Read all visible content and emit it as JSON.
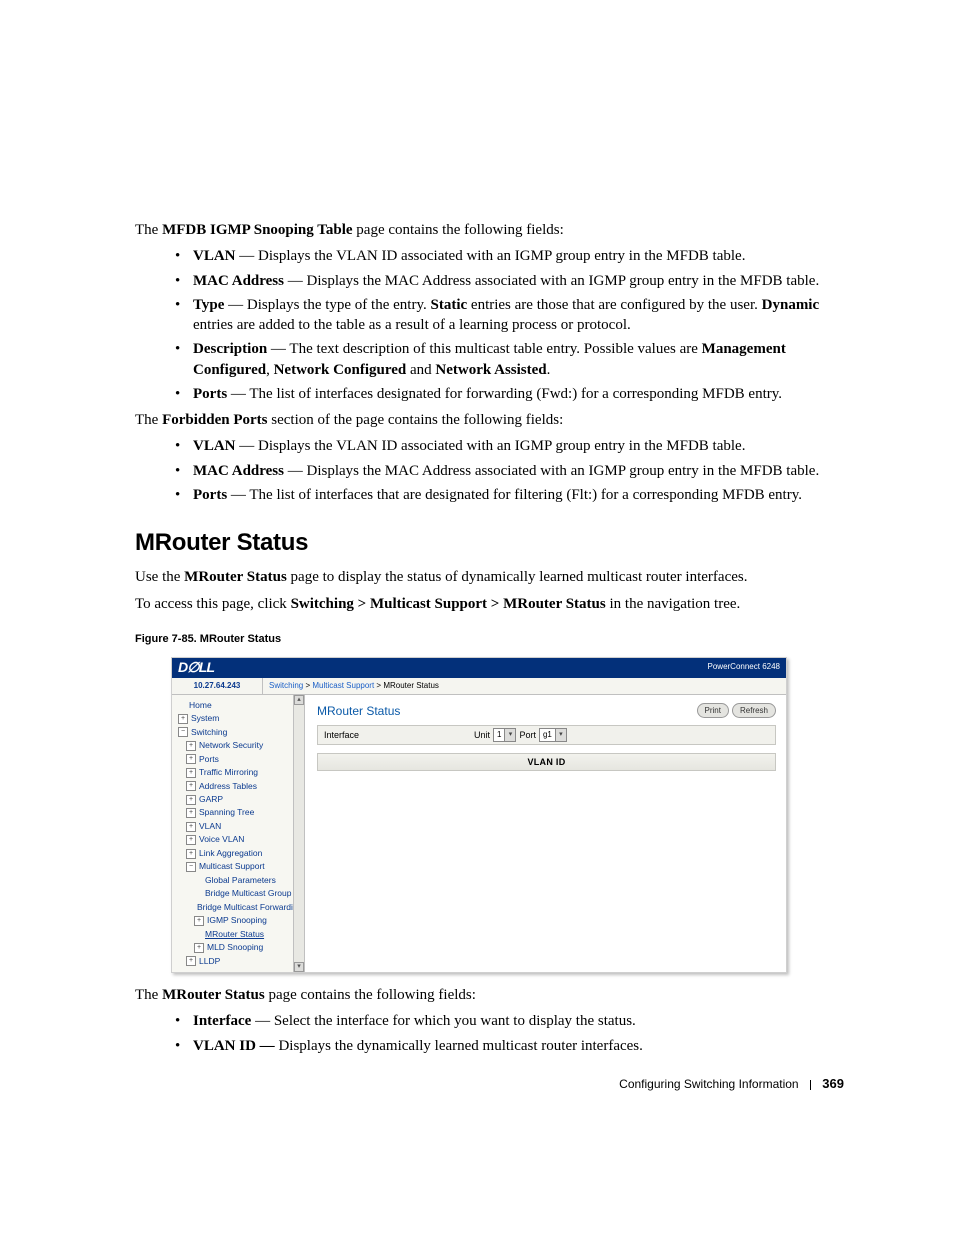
{
  "intro": {
    "line1_a": "The ",
    "line1_b": "MFDB IGMP Snooping Table",
    "line1_c": " page contains the following fields:"
  },
  "list1": {
    "i0": {
      "term": "VLAN",
      "rest": " — Displays the VLAN ID associated with an IGMP group entry in the MFDB table."
    },
    "i1": {
      "term": "MAC Address",
      "rest": " — Displays the MAC Address associated with an IGMP group entry in the MFDB table."
    },
    "i2": {
      "term": "Type",
      "rest_a": " — Displays the type of the entry. ",
      "rest_b": "Static",
      "rest_c": " entries are those that are configured by the user. ",
      "rest_d": "Dynamic",
      "rest_e": " entries are added to the table as a result of a learning process or protocol."
    },
    "i3": {
      "term": "Description",
      "rest_a": " — The text description of this multicast table entry. Possible values are ",
      "rest_b": "Management Configured",
      "rest_c": ", ",
      "rest_d": "Network Configured",
      "rest_e": " and ",
      "rest_f": "Network Assisted",
      "rest_g": "."
    },
    "i4": {
      "term": "Ports",
      "rest": " — The list of interfaces designated for forwarding (Fwd:) for a corresponding MFDB entry."
    }
  },
  "forbidden": {
    "a": "The ",
    "b": "Forbidden Ports",
    "c": " section of the page contains the following fields:"
  },
  "list2": {
    "i0": {
      "term": "VLAN",
      "rest": " — Displays the VLAN ID associated with an IGMP group entry in the MFDB table."
    },
    "i1": {
      "term": "MAC Address",
      "rest": " — Displays the MAC Address associated with an IGMP group entry in the MFDB table."
    },
    "i2": {
      "term": "Ports",
      "rest": " — The list of interfaces that are designated for filtering (Flt:) for a corresponding MFDB entry."
    }
  },
  "heading": "MRouter Status",
  "use_line": {
    "a": "Use the ",
    "b": "MRouter Status",
    "c": " page to display the status of dynamically learned multicast router interfaces."
  },
  "access_line": {
    "a": "To access this page, click ",
    "b": "Switching > Multicast Support > MRouter Status",
    "c": " in the navigation tree."
  },
  "figure_caption": "Figure 7-85.    MRouter Status",
  "shot": {
    "logo": "D∅LL",
    "model": "PowerConnect 6248",
    "ip": "10.27.64.243",
    "crumb_a": "Switching",
    "crumb_b": "Multicast Support",
    "crumb_sep": " > ",
    "crumb_c": "MRouter Status",
    "nav": {
      "home": "Home",
      "system": "System",
      "switching": "Switching",
      "netsec": "Network Security",
      "ports": "Ports",
      "traffic": "Traffic Mirroring",
      "addr": "Address Tables",
      "garp": "GARP",
      "span": "Spanning Tree",
      "vlan": "VLAN",
      "voice": "Voice VLAN",
      "link": "Link Aggregation",
      "multi": "Multicast Support",
      "global": "Global Parameters",
      "bmg": "Bridge Multicast Group",
      "bmf": "Bridge Multicast Forwarding",
      "igmp": "IGMP Snooping",
      "mrouter": "MRouter Status",
      "mld": "MLD Snooping",
      "lldp": "LLDP"
    },
    "main_title": "MRouter Status",
    "btn_print": "Print",
    "btn_refresh": "Refresh",
    "iface_label": "Interface",
    "unit_label": "Unit",
    "unit_value": "1",
    "port_label": "Port",
    "port_value": "g1",
    "vlan_header": "VLAN ID",
    "nav_plus": "+",
    "nav_minus": "−",
    "arrow_up": "▴",
    "arrow_down": "▾"
  },
  "post": {
    "a": "The ",
    "b": "MRouter Status",
    "c": " page contains the following fields:"
  },
  "list3": {
    "i0": {
      "term": "Interface",
      "rest": " — Select the interface for which you want to display the status."
    },
    "i1": {
      "term": "VLAN ID — ",
      "rest": "Displays the dynamically learned multicast router interfaces."
    }
  },
  "footer": {
    "section": "Configuring Switching Information",
    "page": "369"
  }
}
